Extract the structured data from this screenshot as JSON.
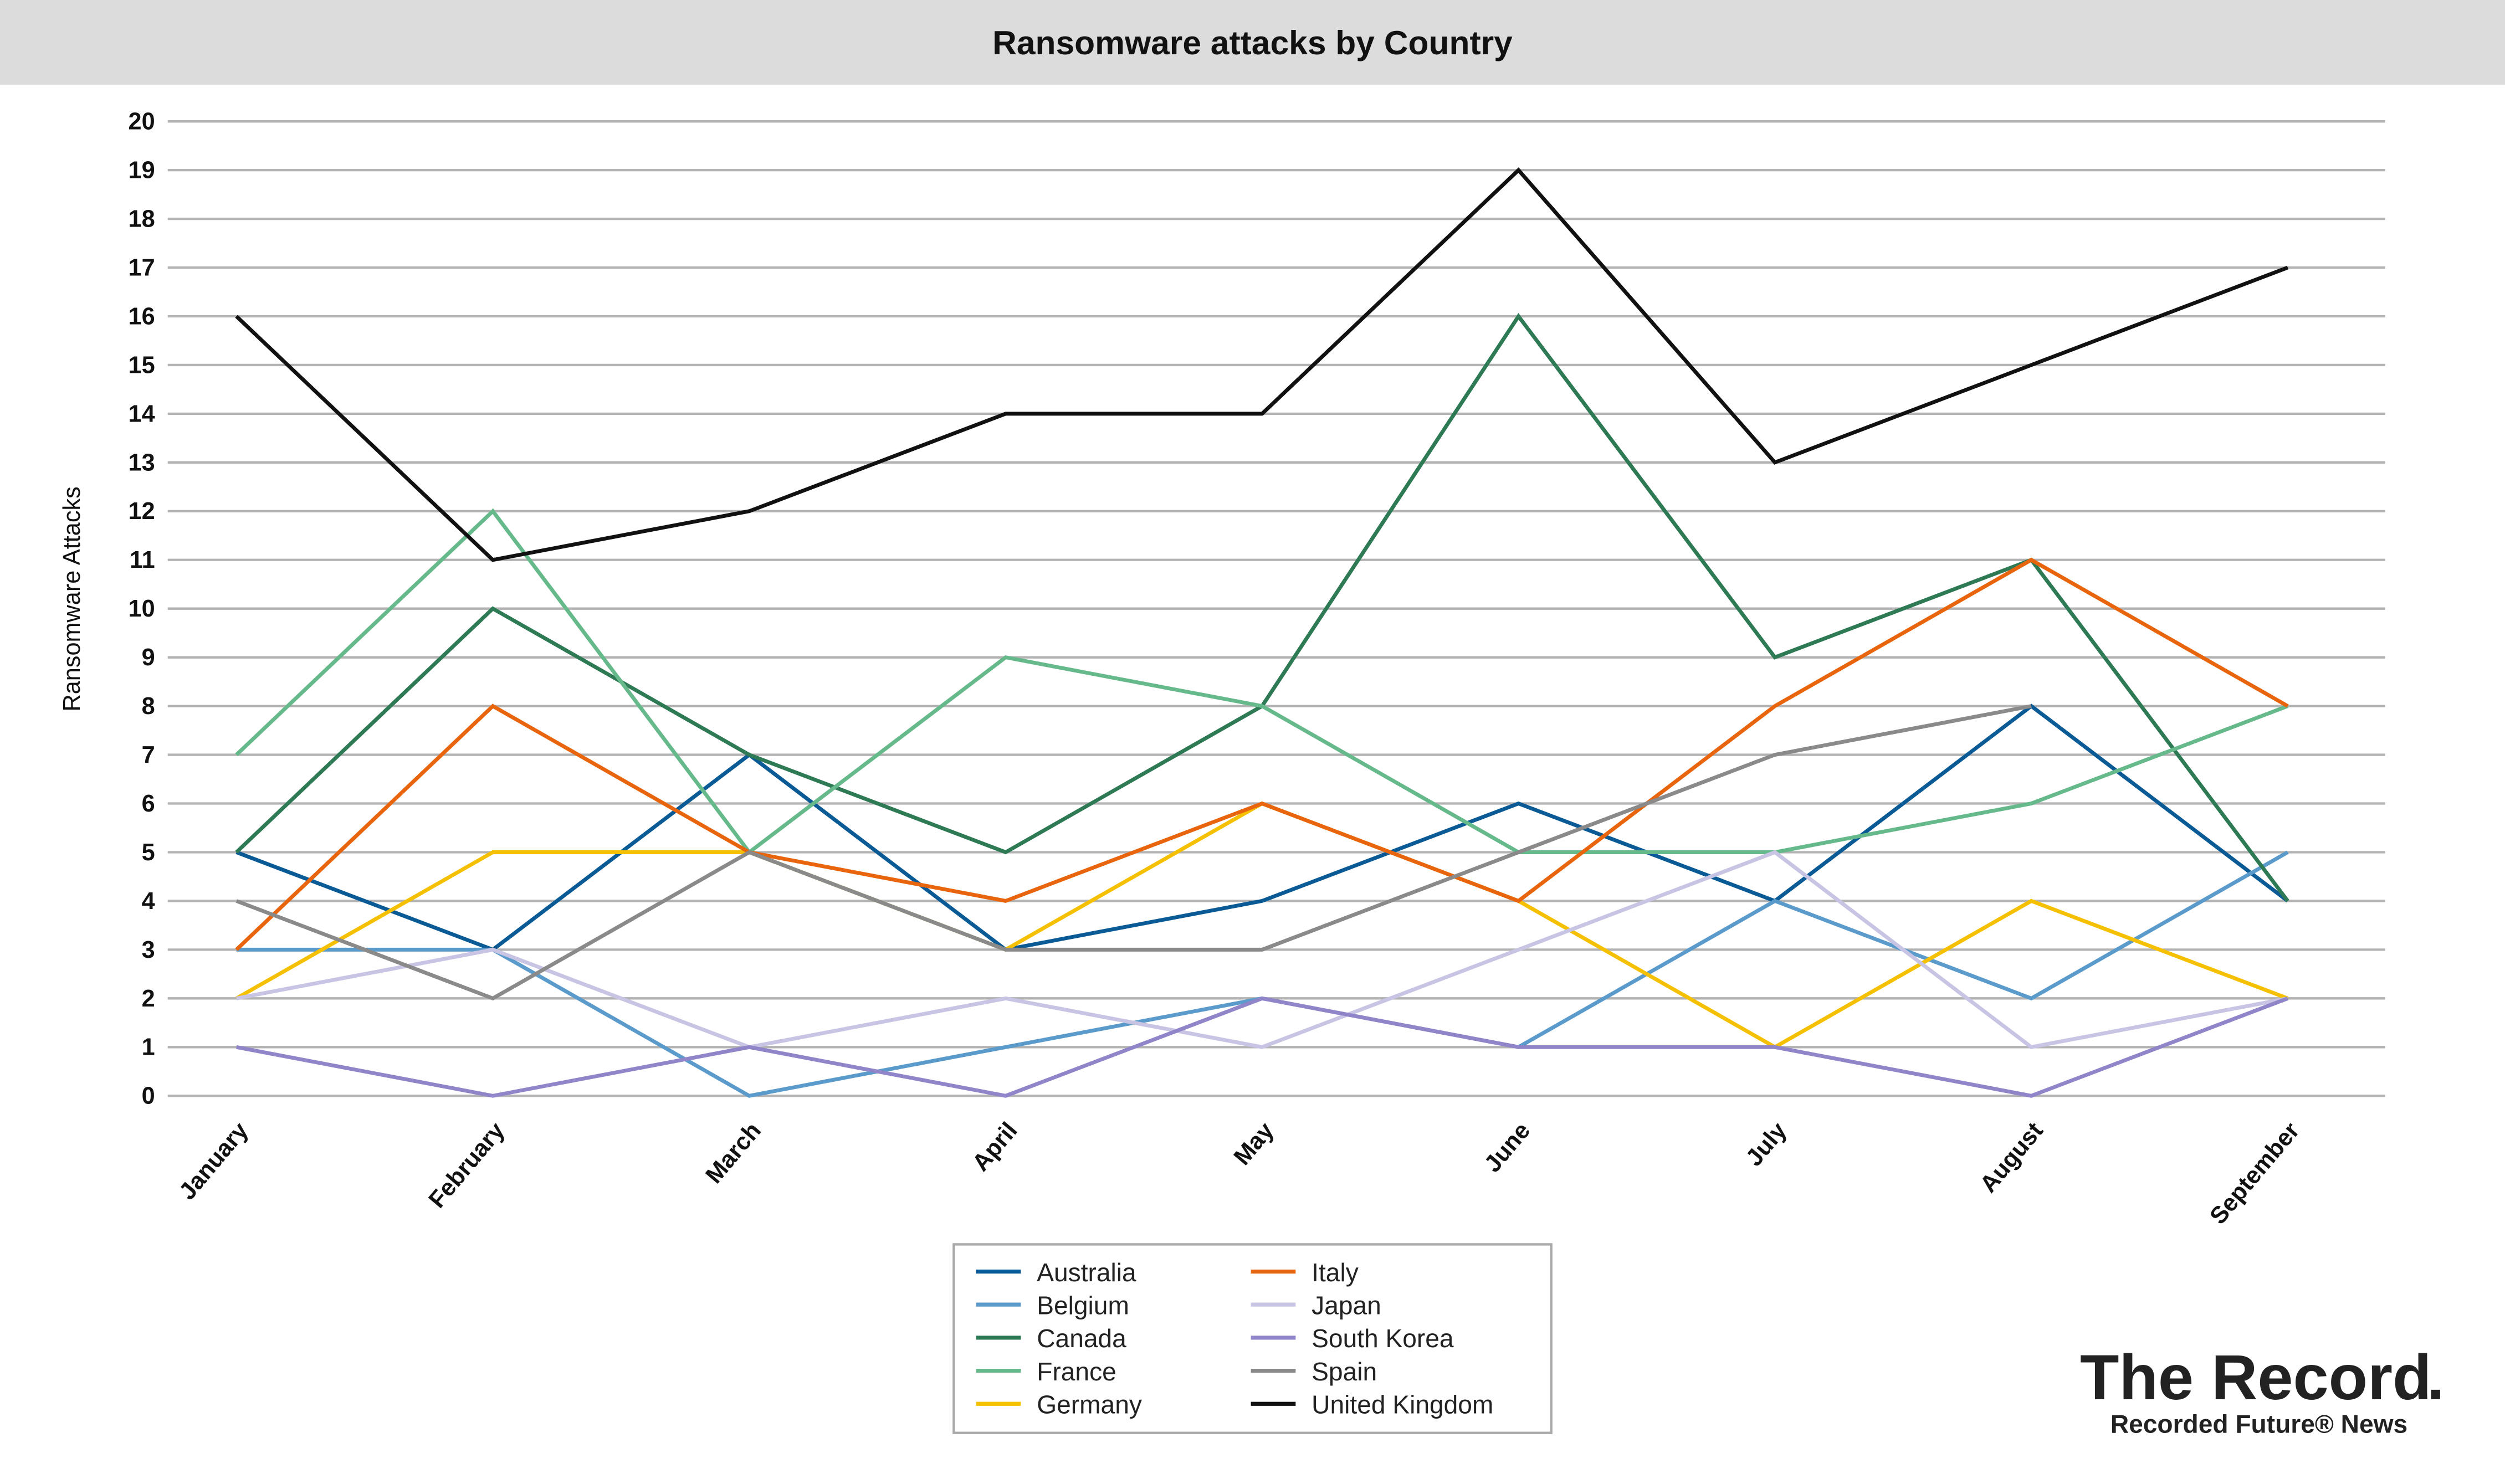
{
  "chart_data": {
    "type": "line",
    "title": "Ransomware attacks by Country",
    "xlabel": "",
    "ylabel": "Ransomware Attacks",
    "ylim": [
      0,
      20
    ],
    "yticks": [
      "0",
      "1",
      "2",
      "3",
      "4",
      "5",
      "6",
      "7",
      "8",
      "9",
      "10",
      "11",
      "12",
      "13",
      "14",
      "15",
      "16",
      "17",
      "18",
      "19",
      "20"
    ],
    "grid": true,
    "legend_position": "bottom-center",
    "categories": [
      "January",
      "February",
      "March",
      "April",
      "May",
      "June",
      "July",
      "August",
      "September"
    ],
    "series": [
      {
        "name": "Australia",
        "color": "#0a5a96",
        "values": [
          5,
          3,
          7,
          3,
          4,
          6,
          4,
          8,
          4
        ]
      },
      {
        "name": "Belgium",
        "color": "#5a9bcc",
        "values": [
          3,
          3,
          0,
          1,
          2,
          1,
          4,
          2,
          5
        ]
      },
      {
        "name": "Canada",
        "color": "#2e7a55",
        "values": [
          5,
          10,
          7,
          5,
          8,
          16,
          9,
          11,
          4
        ]
      },
      {
        "name": "France",
        "color": "#66b98a",
        "values": [
          7,
          12,
          5,
          9,
          8,
          5,
          5,
          6,
          8
        ]
      },
      {
        "name": "Germany",
        "color": "#f5c000",
        "values": [
          2,
          5,
          5,
          3,
          6,
          4,
          1,
          4,
          2
        ]
      },
      {
        "name": "Italy",
        "color": "#e8650e",
        "values": [
          3,
          8,
          5,
          4,
          6,
          4,
          8,
          11,
          8
        ]
      },
      {
        "name": "Japan",
        "color": "#c8c4e4",
        "values": [
          2,
          3,
          1,
          2,
          1,
          3,
          5,
          1,
          2
        ]
      },
      {
        "name": "South Korea",
        "color": "#9185c9",
        "values": [
          1,
          0,
          1,
          0,
          2,
          1,
          1,
          0,
          2
        ]
      },
      {
        "name": "Spain",
        "color": "#8a8a8a",
        "values": [
          4,
          2,
          5,
          3,
          3,
          5,
          7,
          8,
          null
        ]
      },
      {
        "name": "United Kingdom",
        "color": "#111111",
        "values": [
          16,
          11,
          12,
          14,
          14,
          19,
          13,
          15,
          17
        ]
      }
    ]
  },
  "logo": {
    "name": "The Record",
    "dot": ".",
    "sub": "Recorded Future® News",
    "accent": "#f08c1e"
  }
}
